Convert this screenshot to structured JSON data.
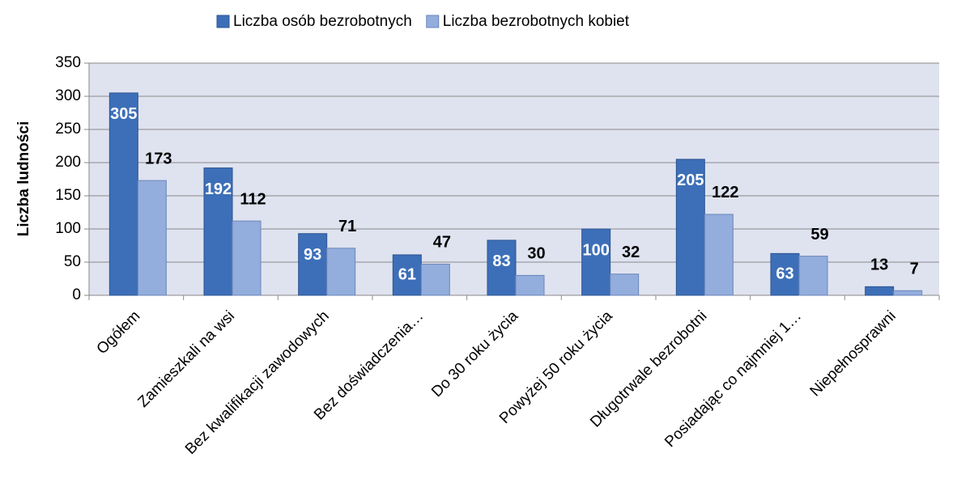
{
  "chart_data": {
    "type": "bar",
    "categories": [
      "Ogółem",
      "Zamieszkali na wsi",
      "Bez kwalifikacji zawodowych",
      "Bez doświadczenia…",
      "Do 30 roku życia",
      "Powyżej 50 roku życia",
      "Długotrwale bezrobotni",
      "Posiadając co najmniej 1…",
      "Niepełnosprawni"
    ],
    "series": [
      {
        "name": "Liczba osób bezrobotnych",
        "color": "#3d6fb8",
        "values": [
          305,
          192,
          93,
          61,
          83,
          100,
          205,
          63,
          13
        ]
      },
      {
        "name": "Liczba bezrobotnych kobiet",
        "color": "#93addd",
        "values": [
          173,
          112,
          71,
          47,
          30,
          32,
          122,
          59,
          7
        ]
      }
    ],
    "y_label": "Liczba ludności",
    "ylim": [
      0,
      350
    ],
    "yticks": [
      0,
      50,
      100,
      150,
      200,
      250,
      300,
      350
    ],
    "grid": true,
    "legend": "top"
  }
}
